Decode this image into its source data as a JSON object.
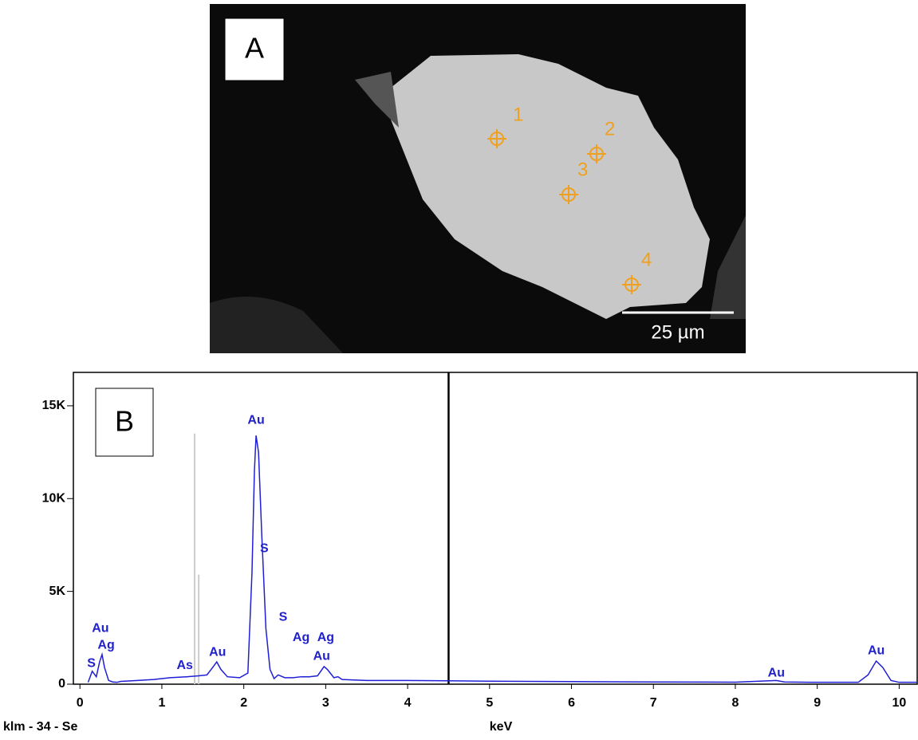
{
  "panel_a": {
    "label": "A",
    "scale_bar": "25 µm",
    "points": [
      "1",
      "2",
      "3",
      "4"
    ]
  },
  "chart_data": {
    "type": "line",
    "panel_label": "B",
    "x_label": "keV",
    "footer": "klm - 34 - Se",
    "xlim": [
      -0.08,
      10.22
    ],
    "ylim": [
      0,
      16800
    ],
    "xticks": [
      0,
      1,
      2,
      3,
      4,
      5,
      6,
      7,
      8,
      9,
      10
    ],
    "yticks": [
      {
        "value": 0,
        "label": "0"
      },
      {
        "value": 5000,
        "label": "5K"
      },
      {
        "value": 10000,
        "label": "10K"
      },
      {
        "value": 15000,
        "label": "15K"
      }
    ],
    "cursor": 4.5,
    "reference_lines": [
      {
        "x": 1.4,
        "y": 13500
      },
      {
        "x": 1.45,
        "y": 5900
      }
    ],
    "series": [
      {
        "color": "#1f1fd6",
        "x": [
          0.1,
          0.15,
          0.2,
          0.24,
          0.27,
          0.3,
          0.35,
          0.4,
          0.45,
          0.5,
          0.7,
          0.9,
          1.1,
          1.3,
          1.45,
          1.55,
          1.62,
          1.67,
          1.72,
          1.8,
          1.95,
          2.05,
          2.1,
          2.13,
          2.15,
          2.18,
          2.22,
          2.27,
          2.32,
          2.37,
          2.42,
          2.5,
          2.6,
          2.7,
          2.8,
          2.9,
          2.98,
          3.02,
          3.1,
          3.15,
          3.2,
          3.5,
          4.0,
          4.5,
          5.0,
          6.0,
          7.0,
          8.0,
          8.5,
          8.6,
          9.0,
          9.5,
          9.62,
          9.72,
          9.8,
          9.9,
          10.0,
          10.22
        ],
        "values": [
          100,
          700,
          400,
          1200,
          1600,
          900,
          200,
          120,
          100,
          150,
          200,
          250,
          350,
          400,
          450,
          500,
          900,
          1200,
          800,
          400,
          350,
          600,
          6000,
          11500,
          13400,
          12500,
          8000,
          3000,
          800,
          300,
          500,
          350,
          350,
          400,
          400,
          450,
          950,
          800,
          350,
          400,
          250,
          200,
          200,
          180,
          160,
          140,
          120,
          110,
          200,
          120,
          100,
          100,
          500,
          1250,
          900,
          200,
          100,
          100
        ]
      }
    ],
    "annotations": [
      {
        "text": "Au",
        "x": 0.25,
        "y": 3000
      },
      {
        "text": "Ag",
        "x": 0.32,
        "y": 2100
      },
      {
        "text": "S",
        "x": 0.14,
        "y": 1100
      },
      {
        "text": "As",
        "x": 1.28,
        "y": 1000
      },
      {
        "text": "Au",
        "x": 1.68,
        "y": 1700
      },
      {
        "text": "Au",
        "x": 2.15,
        "y": 14200
      },
      {
        "text": "S",
        "x": 2.25,
        "y": 7300
      },
      {
        "text": "S",
        "x": 2.48,
        "y": 3600
      },
      {
        "text": "Ag",
        "x": 2.7,
        "y": 2500
      },
      {
        "text": "Ag",
        "x": 3.0,
        "y": 2500
      },
      {
        "text": "Au",
        "x": 2.95,
        "y": 1500
      },
      {
        "text": "Au",
        "x": 8.5,
        "y": 600
      },
      {
        "text": "Au",
        "x": 9.72,
        "y": 1800
      }
    ]
  }
}
